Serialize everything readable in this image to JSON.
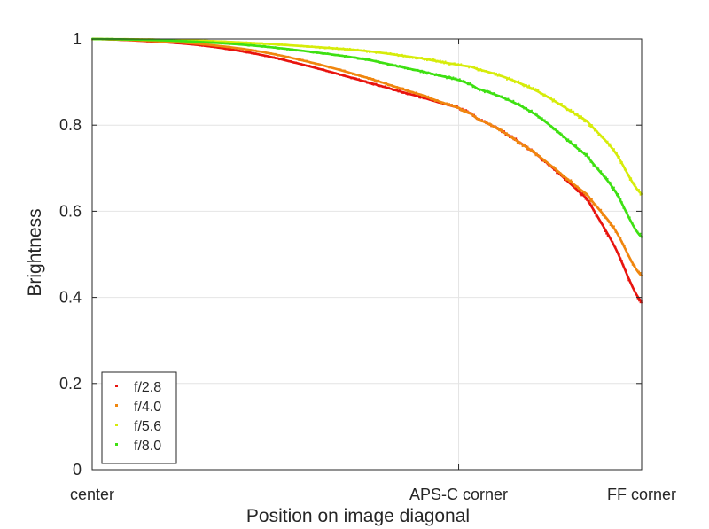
{
  "chart_data": {
    "type": "scatter",
    "title": "",
    "xlabel": "Position on image diagonal",
    "ylabel": "Brightness",
    "xlim": [
      0,
      1
    ],
    "ylim": [
      0,
      1
    ],
    "x_ticks": [
      {
        "value": 0,
        "label": "center"
      },
      {
        "value": 0.667,
        "label": "APS-C corner"
      },
      {
        "value": 1,
        "label": "FF corner"
      }
    ],
    "y_ticks": [
      {
        "value": 0,
        "label": "0"
      },
      {
        "value": 0.2,
        "label": "0.2"
      },
      {
        "value": 0.4,
        "label": "0.4"
      },
      {
        "value": 0.6,
        "label": "0.6"
      },
      {
        "value": 0.8,
        "label": "0.8"
      },
      {
        "value": 1,
        "label": "1"
      }
    ],
    "grid": true,
    "legend_position": "bottom-left",
    "series": [
      {
        "name": "f/2.8",
        "color": "#e8140f",
        "x": [
          0,
          0.1,
          0.2,
          0.3,
          0.4,
          0.5,
          0.6,
          0.667,
          0.7,
          0.8,
          0.9,
          0.95,
          1.0
        ],
        "y": [
          1.0,
          0.995,
          0.985,
          0.965,
          0.935,
          0.9,
          0.865,
          0.84,
          0.815,
          0.74,
          0.63,
          0.52,
          0.39
        ]
      },
      {
        "name": "f/4.0",
        "color": "#f0860f",
        "x": [
          0,
          0.1,
          0.2,
          0.3,
          0.4,
          0.5,
          0.6,
          0.667,
          0.7,
          0.8,
          0.9,
          0.95,
          1.0
        ],
        "y": [
          1.0,
          0.996,
          0.988,
          0.972,
          0.945,
          0.91,
          0.87,
          0.84,
          0.815,
          0.74,
          0.64,
          0.56,
          0.45
        ]
      },
      {
        "name": "f/5.6",
        "color": "#d6ec0a",
        "x": [
          0,
          0.1,
          0.2,
          0.3,
          0.4,
          0.5,
          0.6,
          0.667,
          0.7,
          0.8,
          0.9,
          0.95,
          1.0
        ],
        "y": [
          1.0,
          0.999,
          0.996,
          0.99,
          0.982,
          0.972,
          0.955,
          0.94,
          0.93,
          0.885,
          0.81,
          0.74,
          0.64
        ]
      },
      {
        "name": "f/8.0",
        "color": "#3ee012",
        "x": [
          0,
          0.1,
          0.2,
          0.3,
          0.4,
          0.5,
          0.6,
          0.667,
          0.7,
          0.8,
          0.9,
          0.95,
          1.0
        ],
        "y": [
          1.0,
          0.998,
          0.993,
          0.984,
          0.97,
          0.952,
          0.925,
          0.905,
          0.885,
          0.83,
          0.73,
          0.65,
          0.54
        ]
      }
    ]
  }
}
